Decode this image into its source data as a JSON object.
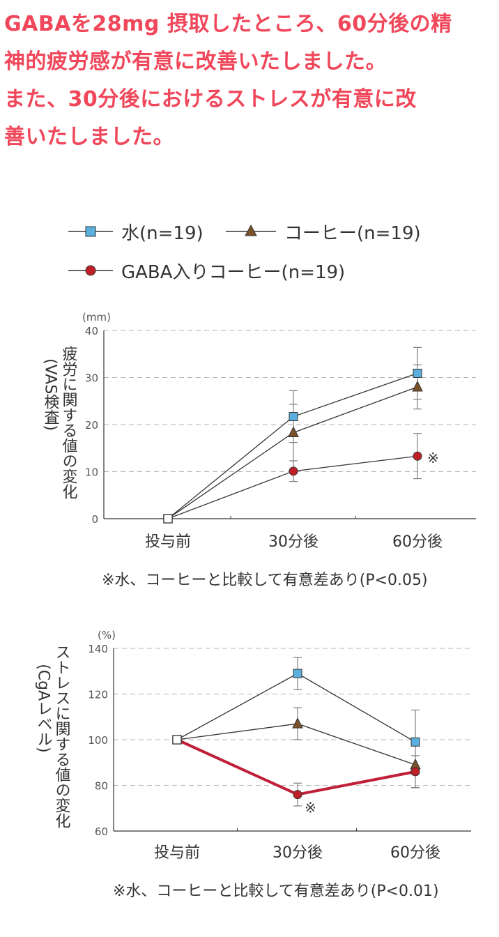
{
  "headline": [
    "GABAを28mg 摂取したところ、60分後の精",
    "神的疲労感が有意に改善いたしました。",
    "また、30分後におけるストレスが有意に改",
    "善いたしました。"
  ],
  "legend": [
    {
      "label": "水(n=19)",
      "marker": "square",
      "color": "#5aafde"
    },
    {
      "label": "コーヒー(n=19)",
      "marker": "triangle",
      "color": "#7a5128"
    },
    {
      "label": "GABA入りコーヒー(n=19)",
      "marker": "circle",
      "color": "#c01f26"
    }
  ],
  "chart_data": [
    {
      "type": "line",
      "unit": "(mm)",
      "ylabel": "疲労に関する値の変化",
      "ylabel2": "(VAS検査)",
      "categories": [
        "投与前",
        "30分後",
        "60分後"
      ],
      "ylim": [
        0,
        40
      ],
      "yticks": [
        0,
        10,
        20,
        30,
        40
      ],
      "grid": true,
      "series": [
        {
          "name": "水(n=19)",
          "marker": "square",
          "values": [
            0,
            21.7,
            30.9
          ],
          "err": [
            0,
            5.5,
            5.5
          ]
        },
        {
          "name": "コーヒー(n=19)",
          "marker": "triangle",
          "values": [
            0,
            18.3,
            28
          ],
          "err": [
            0,
            6,
            4.7
          ]
        },
        {
          "name": "GABA入りコーヒー(n=19)",
          "marker": "circle",
          "values": [
            0,
            10.1,
            13.3
          ],
          "err": [
            0,
            2.2,
            4.8
          ]
        }
      ],
      "significance": [
        {
          "series": 2,
          "index": 2,
          "mark": "※"
        }
      ],
      "note": "※水、コーヒーと比較して有意差あり(P<0.05)"
    },
    {
      "type": "line",
      "unit": "(%)",
      "ylabel": "ストレスに関する値の変化",
      "ylabel2": "(CgAレベル)",
      "categories": [
        "投与前",
        "30分後",
        "60分後"
      ],
      "ylim": [
        60,
        140
      ],
      "yticks": [
        60,
        80,
        100,
        120,
        140
      ],
      "grid": true,
      "series": [
        {
          "name": "水(n=19)",
          "marker": "square",
          "values": [
            100,
            129,
            99
          ],
          "err": [
            0,
            7,
            14
          ]
        },
        {
          "name": "コーヒー(n=19)",
          "marker": "triangle",
          "values": [
            100,
            107,
            89
          ],
          "err": [
            0,
            7,
            10
          ]
        },
        {
          "name": "GABA入りコーヒー(n=19)",
          "marker": "circle",
          "values": [
            100,
            76,
            86
          ],
          "err": [
            0,
            5,
            7
          ]
        }
      ],
      "highlight_series": 2,
      "significance": [
        {
          "series": 2,
          "index": 1,
          "mark": "※"
        }
      ],
      "note": "※水、コーヒーと比較して有意差あり(P<0.01)"
    }
  ]
}
